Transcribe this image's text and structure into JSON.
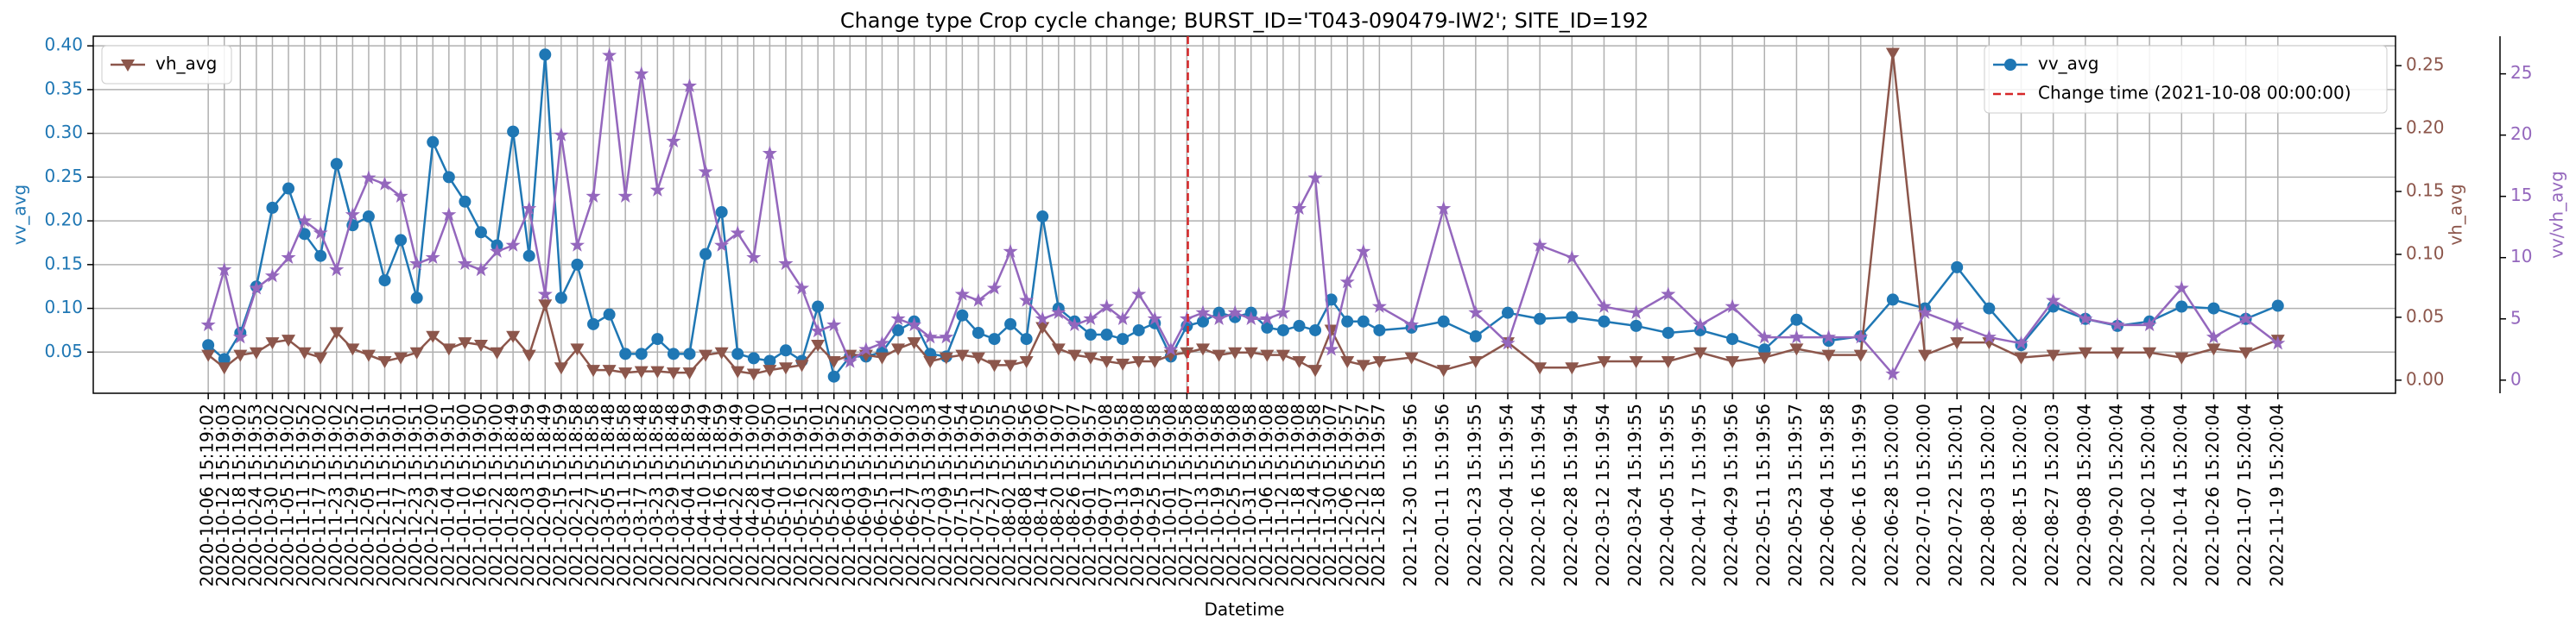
{
  "chart_data": {
    "type": "line",
    "title": "Change type Crop cycle change; BURST_ID='T043-090479-IW2'; SITE_ID=192",
    "xlabel": "Datetime",
    "ylabel": "vv_avg",
    "y2label": "vh_avg",
    "y3label": "vv/vh_avg",
    "grid": true,
    "x": [
      "2020-10-06 15:19:02",
      "2020-10-12 15:19:03",
      "2020-10-18 15:19:02",
      "2020-10-24 15:19:53",
      "2020-10-30 15:19:02",
      "2020-11-05 15:19:02",
      "2020-11-11 15:19:52",
      "2020-11-17 15:19:02",
      "2020-11-23 15:19:02",
      "2020-11-29 15:19:52",
      "2020-12-05 15:19:01",
      "2020-12-11 15:19:51",
      "2020-12-17 15:19:01",
      "2020-12-23 15:19:51",
      "2020-12-29 15:19:00",
      "2021-01-04 15:19:51",
      "2021-01-10 15:19:00",
      "2021-01-16 15:19:50",
      "2021-01-22 15:19:00",
      "2021-01-28 15:18:49",
      "2021-02-03 15:18:59",
      "2021-02-09 15:18:49",
      "2021-02-15 15:18:59",
      "2021-02-21 15:18:58",
      "2021-02-27 15:18:58",
      "2021-03-05 15:18:48",
      "2021-03-11 15:18:58",
      "2021-03-17 15:18:48",
      "2021-03-23 15:18:58",
      "2021-03-29 15:18:48",
      "2021-04-04 15:18:59",
      "2021-04-10 15:18:49",
      "2021-04-16 15:18:59",
      "2021-04-22 15:19:49",
      "2021-04-28 15:19:00",
      "2021-05-04 15:19:50",
      "2021-05-10 15:19:01",
      "2021-05-16 15:19:51",
      "2021-05-22 15:19:01",
      "2021-05-28 15:19:52",
      "2021-06-03 15:19:52",
      "2021-06-09 15:19:52",
      "2021-06-15 15:19:02",
      "2021-06-21 15:19:02",
      "2021-06-27 15:19:03",
      "2021-07-03 15:19:53",
      "2021-07-09 15:19:04",
      "2021-07-15 15:19:54",
      "2021-07-21 15:19:05",
      "2021-07-27 15:19:55",
      "2021-08-02 15:19:05",
      "2021-08-08 15:19:56",
      "2021-08-14 15:19:06",
      "2021-08-20 15:19:07",
      "2021-08-26 15:19:07",
      "2021-09-01 15:19:57",
      "2021-09-07 15:19:08",
      "2021-09-13 15:19:58",
      "2021-09-19 15:19:08",
      "2021-09-25 15:19:58",
      "2021-10-01 15:19:08",
      "2021-10-07 15:19:58",
      "2021-10-13 15:19:08",
      "2021-10-19 15:19:58",
      "2021-10-25 15:19:08",
      "2021-10-31 15:19:58",
      "2021-11-06 15:19:08",
      "2021-11-12 15:19:08",
      "2021-11-18 15:19:08",
      "2021-11-24 15:19:58",
      "2021-11-30 15:19:07",
      "2021-12-06 15:19:57",
      "2021-12-12 15:19:57",
      "2021-12-18 15:19:57",
      "2021-12-30 15:19:56",
      "2022-01-11 15:19:56",
      "2022-01-23 15:19:55",
      "2022-02-04 15:19:54",
      "2022-02-16 15:19:54",
      "2022-02-28 15:19:54",
      "2022-03-12 15:19:54",
      "2022-03-24 15:19:55",
      "2022-04-05 15:19:55",
      "2022-04-17 15:19:55",
      "2022-04-29 15:19:56",
      "2022-05-11 15:19:56",
      "2022-05-23 15:19:57",
      "2022-06-04 15:19:58",
      "2022-06-16 15:19:59",
      "2022-06-28 15:20:00",
      "2022-07-10 15:20:00",
      "2022-07-22 15:20:01",
      "2022-08-03 15:20:02",
      "2022-08-15 15:20:02",
      "2022-08-27 15:20:03",
      "2022-09-08 15:20:04",
      "2022-09-20 15:20:04",
      "2022-10-02 15:20:04",
      "2022-10-14 15:20:04",
      "2022-10-26 15:20:04",
      "2022-11-07 15:20:04",
      "2022-11-19 15:20:04"
    ],
    "xlim": [
      "2020-08-24 15:19:00",
      "2023-01-02 15:20:00"
    ],
    "series": [
      {
        "name": "vv_avg",
        "color": "#1f77b4",
        "marker": "circle",
        "axis": "y",
        "legend_loc": "upper right",
        "values": [
          0.058,
          0.042,
          0.072,
          0.125,
          0.215,
          0.237,
          0.185,
          0.16,
          0.265,
          0.195,
          0.205,
          0.132,
          0.178,
          0.112,
          0.29,
          0.25,
          0.222,
          0.187,
          0.172,
          0.302,
          0.16,
          0.39,
          0.112,
          0.15,
          0.082,
          0.093,
          0.048,
          0.048,
          0.065,
          0.048,
          0.048,
          0.162,
          0.21,
          0.048,
          0.043,
          0.04,
          0.052,
          0.04,
          0.102,
          0.022,
          0.045,
          0.045,
          0.05,
          0.075,
          0.085,
          0.048,
          0.045,
          0.092,
          0.072,
          0.065,
          0.082,
          0.065,
          0.205,
          0.1,
          0.085,
          0.07,
          0.07,
          0.065,
          0.075,
          0.083,
          0.045,
          0.08,
          0.085,
          0.095,
          0.09,
          0.095,
          0.078,
          0.075,
          0.08,
          0.075,
          0.11,
          0.085,
          0.085,
          0.075,
          0.078,
          0.085,
          0.068,
          0.095,
          0.088,
          0.09,
          0.085,
          0.08,
          0.072,
          0.075,
          0.065,
          0.053,
          0.087,
          0.063,
          0.068,
          0.11,
          0.1,
          0.147,
          0.1,
          0.058,
          0.102,
          0.088,
          0.08,
          0.085,
          0.102,
          0.1,
          0.088,
          0.103
        ]
      },
      {
        "name": "vh_avg",
        "color": "#8c564b",
        "marker": "triangle-down",
        "axis": "y2",
        "legend_loc": "upper left",
        "values": [
          0.02,
          0.01,
          0.02,
          0.022,
          0.03,
          0.032,
          0.022,
          0.018,
          0.038,
          0.025,
          0.02,
          0.015,
          0.018,
          0.022,
          0.035,
          0.025,
          0.03,
          0.028,
          0.022,
          0.035,
          0.02,
          0.06,
          0.01,
          0.025,
          0.008,
          0.008,
          0.006,
          0.007,
          0.007,
          0.006,
          0.006,
          0.02,
          0.022,
          0.007,
          0.005,
          0.008,
          0.01,
          0.012,
          0.028,
          0.015,
          0.02,
          0.02,
          0.018,
          0.025,
          0.03,
          0.015,
          0.018,
          0.02,
          0.018,
          0.012,
          0.012,
          0.015,
          0.042,
          0.025,
          0.02,
          0.018,
          0.015,
          0.013,
          0.015,
          0.015,
          0.02,
          0.022,
          0.025,
          0.02,
          0.022,
          0.022,
          0.02,
          0.02,
          0.015,
          0.008,
          0.04,
          0.015,
          0.012,
          0.015,
          0.018,
          0.008,
          0.015,
          0.03,
          0.01,
          0.01,
          0.015,
          0.015,
          0.015,
          0.022,
          0.015,
          0.018,
          0.025,
          0.02,
          0.02,
          0.26,
          0.02,
          0.03,
          0.03,
          0.018,
          0.02,
          0.022,
          0.022,
          0.022,
          0.018,
          0.025,
          0.022,
          0.032
        ]
      },
      {
        "name": "vv/vh_avg",
        "color": "#9467bd",
        "marker": "star",
        "axis": "y3",
        "values": [
          4.5,
          9,
          3.5,
          7.5,
          8.5,
          10,
          13,
          12,
          9,
          13.5,
          16.5,
          16,
          15,
          9.5,
          10,
          13.5,
          9.5,
          9,
          10.5,
          11,
          14,
          7,
          20,
          11,
          15,
          26.5,
          15,
          25,
          15.5,
          19.5,
          24,
          17,
          11,
          12,
          10,
          18.5,
          9.5,
          7.5,
          4,
          4.5,
          1.5,
          2.5,
          3,
          5,
          4.5,
          3.5,
          3.5,
          7,
          6.5,
          7.5,
          10.5,
          6.5,
          5,
          5.5,
          4.5,
          5,
          6,
          5,
          7,
          5,
          2.5,
          5,
          5.5,
          5,
          5.5,
          5,
          5,
          5.5,
          14,
          16.5,
          2.5,
          8,
          10.5,
          6,
          4.5,
          14,
          5.5,
          3,
          11,
          10,
          6,
          5.5,
          7,
          4.5,
          6,
          3.5,
          3.5,
          3.5,
          3.5,
          0.5,
          5.5,
          4.5,
          3.5,
          3,
          6.5,
          5,
          4.5,
          4.5,
          7.5,
          3.5,
          5,
          3
        ]
      }
    ],
    "change_line": {
      "x": "2021-10-08 00:00:00",
      "label": "Change time (2021-10-08 00:00:00)",
      "color": "#d62728"
    },
    "ylim": [
      0.003,
      0.411
    ],
    "yticks": [
      0.05,
      {
        "value": 0.1,
        "label": "0.10"
      },
      0.15,
      {
        "value": 0.2,
        "label": "0.20"
      },
      0.25,
      {
        "value": 0.3,
        "label": "0.30"
      },
      0.35,
      {
        "value": 0.4,
        "label": "0.40"
      }
    ],
    "y2lim": [
      -0.0104,
      0.2734
    ],
    "y2ticks": [
      {
        "value": 0,
        "label": "0.00"
      },
      0.05,
      {
        "value": 0.1,
        "label": "0.10"
      },
      0.15,
      {
        "value": 0.2,
        "label": "0.20"
      },
      0.25
    ],
    "y3lim": [
      -1.07,
      28.07
    ],
    "y3ticks": [
      0,
      5,
      10,
      15,
      20,
      25
    ]
  }
}
